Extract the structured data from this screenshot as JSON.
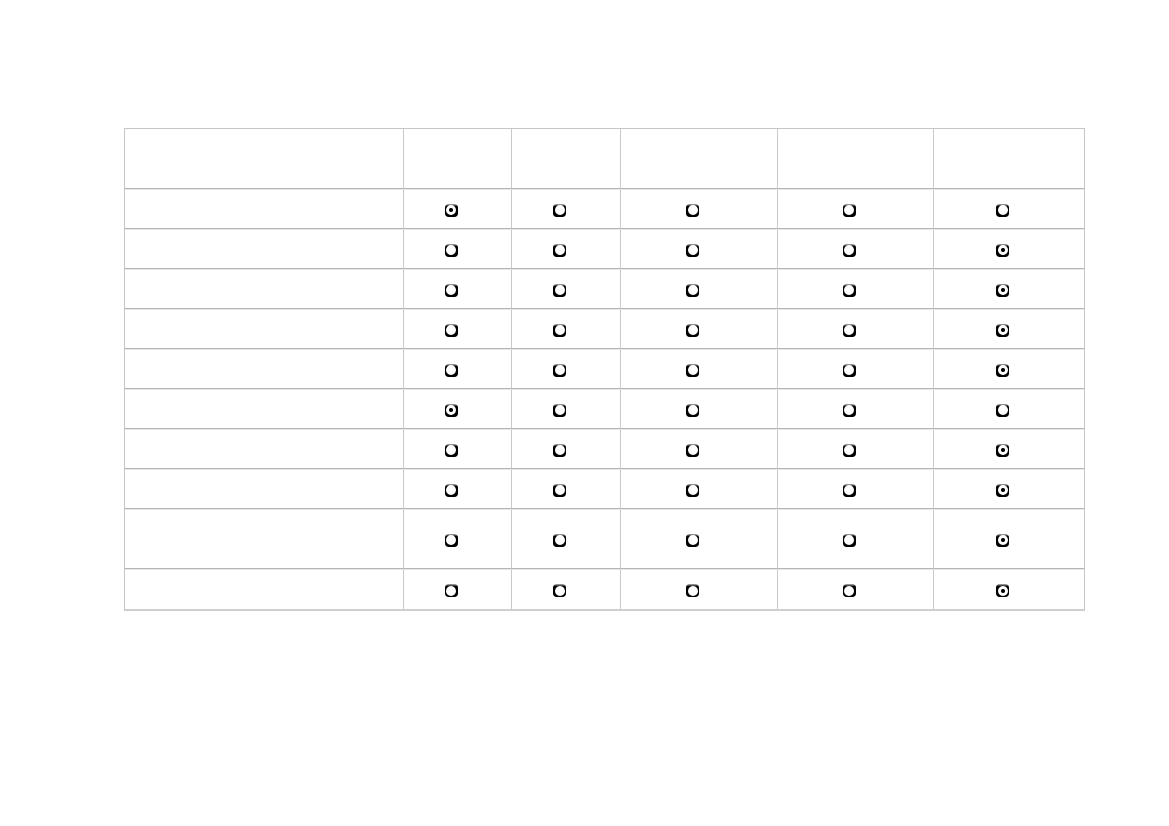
{
  "window": {
    "background": "#ffffff"
  },
  "survey_table": {
    "corner_header": "",
    "option_headers": [
      "",
      "",
      "",
      "",
      ""
    ],
    "rows": [
      {
        "label": "",
        "selected_option": 1
      },
      {
        "label": "",
        "selected_option": 5
      },
      {
        "label": "",
        "selected_option": 5
      },
      {
        "label": "",
        "selected_option": 5
      },
      {
        "label": "",
        "selected_option": 5
      },
      {
        "label": "",
        "selected_option": 1
      },
      {
        "label": "",
        "selected_option": 5
      },
      {
        "label": "",
        "selected_option": 5
      },
      {
        "label": "",
        "selected_option": 5
      },
      {
        "label": "",
        "selected_option": 5
      }
    ],
    "colors": {
      "grid_vertical": "#c9c9c9",
      "grid_horizontal_dark": "#b5b5b5",
      "grid_horizontal_light": "#e9e9e9",
      "outer_border": "#c6c6c6",
      "radio_outer": "#000000",
      "radio_inner": "#ffffff",
      "radio_dot": "#000000"
    }
  }
}
